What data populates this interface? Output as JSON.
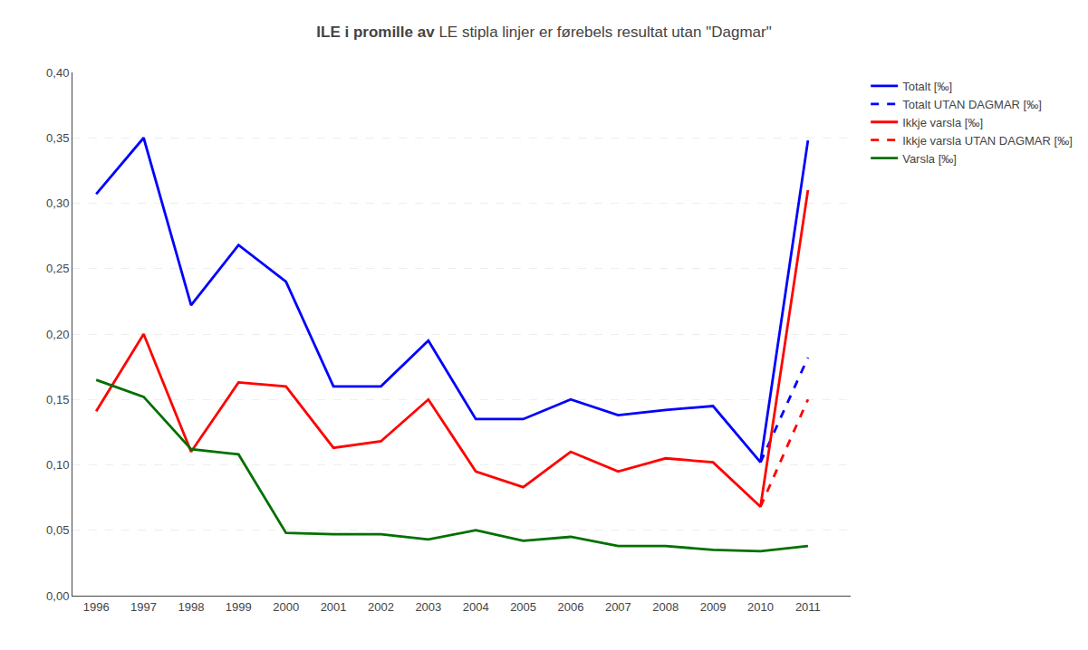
{
  "chart_data": {
    "type": "line",
    "title": "ILE i promille av",
    "subtitle": " LE stipla linjer er førebels resultat utan \"Dagmar\"",
    "x": [
      1996,
      1997,
      1998,
      1999,
      2000,
      2001,
      2002,
      2003,
      2004,
      2005,
      2006,
      2007,
      2008,
      2009,
      2010,
      2011
    ],
    "series": [
      {
        "name": "Totalt [‰]",
        "color": "#0000FF",
        "line_style": "solid",
        "values": [
          0.307,
          0.35,
          0.222,
          0.268,
          0.24,
          0.16,
          0.16,
          0.195,
          0.135,
          0.135,
          0.15,
          0.138,
          0.142,
          0.145,
          0.102,
          0.348
        ]
      },
      {
        "name": "Totalt UTAN DAGMAR [‰]",
        "color": "#0000FF",
        "line_style": "dashed",
        "values": [
          null,
          null,
          null,
          null,
          null,
          null,
          null,
          null,
          null,
          null,
          null,
          null,
          null,
          null,
          0.102,
          0.182
        ]
      },
      {
        "name": "Ikkje varsla [‰]",
        "color": "#FF0000",
        "line_style": "solid",
        "values": [
          0.141,
          0.2,
          0.11,
          0.163,
          0.16,
          0.113,
          0.118,
          0.15,
          0.095,
          0.083,
          0.11,
          0.095,
          0.105,
          0.102,
          0.068,
          0.31
        ]
      },
      {
        "name": "Ikkje varsla UTAN DAGMAR [‰]",
        "color": "#FF0000",
        "line_style": "dashed",
        "values": [
          null,
          null,
          null,
          null,
          null,
          null,
          null,
          null,
          null,
          null,
          null,
          null,
          null,
          null,
          0.068,
          0.15
        ]
      },
      {
        "name": "Varsla [‰]",
        "color": "#007000",
        "line_style": "solid",
        "values": [
          0.165,
          0.152,
          0.112,
          0.108,
          0.048,
          0.047,
          0.047,
          0.043,
          0.05,
          0.042,
          0.045,
          0.038,
          0.038,
          0.035,
          0.034,
          0.038
        ]
      }
    ],
    "xlim": [
      1995.5,
      2011.9
    ],
    "xticks": [
      1996,
      1997,
      1998,
      1999,
      2000,
      2001,
      2002,
      2003,
      2004,
      2005,
      2006,
      2007,
      2008,
      2009,
      2010,
      2011
    ],
    "ylim": [
      0.0,
      0.4
    ],
    "yticks": [
      {
        "value": 0.0,
        "label": "0,00"
      },
      {
        "value": 0.05,
        "label": "0,05"
      },
      {
        "value": 0.1,
        "label": "0,10"
      },
      {
        "value": 0.15,
        "label": "0,15"
      },
      {
        "value": 0.2,
        "label": "0,20"
      },
      {
        "value": 0.25,
        "label": "0,25"
      },
      {
        "value": 0.3,
        "label": "0,30"
      },
      {
        "value": 0.35,
        "label": "0,35"
      },
      {
        "value": 0.4,
        "label": "0,40"
      }
    ],
    "grid": "y",
    "legend": "upper right"
  }
}
